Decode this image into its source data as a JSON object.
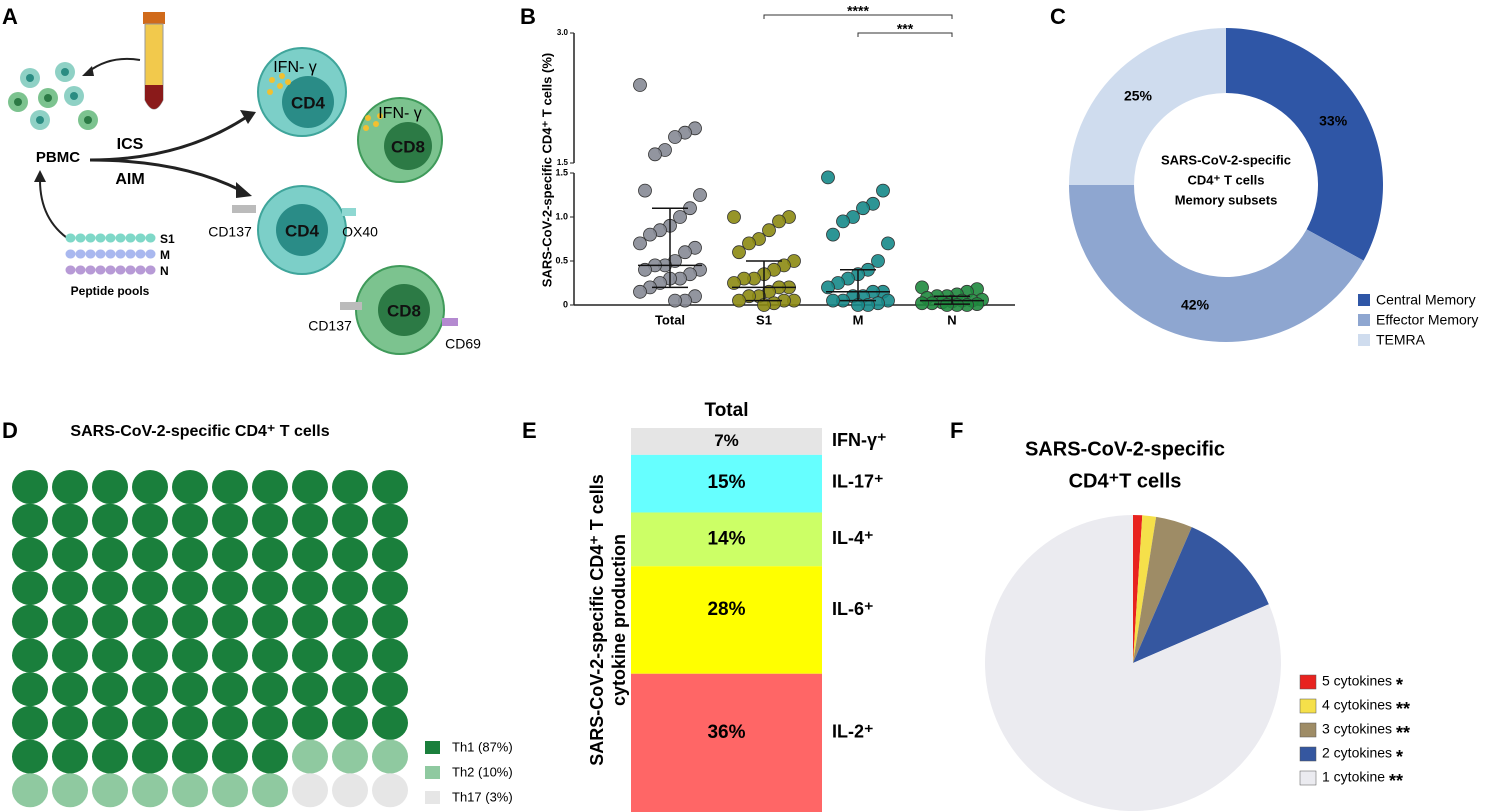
{
  "panel_labels": [
    "A",
    "B",
    "C",
    "D",
    "E",
    "F"
  ],
  "diagram": {
    "pbmc": "PBMC",
    "ics": "ICS",
    "aim": "AIM",
    "ifng": "IFN- γ",
    "cd4": "CD4",
    "cd8": "CD8",
    "cd137": "CD137",
    "ox40": "OX40",
    "cd69": "CD69",
    "peptides": [
      "S1",
      "M",
      "N"
    ],
    "peptide_pools": "Peptide pools"
  },
  "chart_data": [
    {
      "type": "dot",
      "ylabel": "SARS-CoV-2-specific CD4⁺ T cells (%)",
      "categories": [
        "Total",
        "S1",
        "M",
        "N"
      ],
      "colors": [
        "#868a95",
        "#8c8a12",
        "#168a8a",
        "#1f8a3e"
      ],
      "values": [
        [
          2.4,
          1.9,
          1.85,
          1.8,
          1.65,
          1.6,
          1.3,
          1.25,
          1.1,
          1.0,
          0.9,
          0.85,
          0.8,
          0.7,
          0.65,
          0.6,
          0.5,
          0.45,
          0.45,
          0.4,
          0.4,
          0.35,
          0.3,
          0.3,
          0.25,
          0.2,
          0.15,
          0.1,
          0.05,
          0.05
        ],
        [
          1.0,
          1.0,
          0.95,
          0.85,
          0.75,
          0.7,
          0.6,
          0.5,
          0.45,
          0.4,
          0.35,
          0.3,
          0.3,
          0.25,
          0.2,
          0.2,
          0.15,
          0.1,
          0.1,
          0.05,
          0.05,
          0.05,
          0.02,
          0
        ],
        [
          1.45,
          1.3,
          1.15,
          1.1,
          1.0,
          0.95,
          0.8,
          0.7,
          0.5,
          0.4,
          0.35,
          0.3,
          0.25,
          0.2,
          0.15,
          0.15,
          0.1,
          0.1,
          0.05,
          0.05,
          0.05,
          0.02,
          0,
          0
        ],
        [
          0.2,
          0.18,
          0.15,
          0.12,
          0.1,
          0.1,
          0.08,
          0.06,
          0.05,
          0.05,
          0.04,
          0.03,
          0.02,
          0.02,
          0.01,
          0,
          0,
          0
        ]
      ],
      "median": [
        0.45,
        0.2,
        0.15,
        0.05
      ],
      "q1": [
        0.2,
        0.05,
        0.05,
        0.01
      ],
      "q3": [
        1.1,
        0.5,
        0.4,
        0.1
      ],
      "ylim": [
        0,
        1.5
      ],
      "yticks": [
        0,
        0.5,
        {
          "value": 1,
          "label": "1.0"
        },
        1.5
      ],
      "ylim_upper": [
        1.5,
        3
      ],
      "yticks_upper": [
        1.5,
        {
          "value": 3,
          "label": "3.0"
        }
      ],
      "annotations": [
        "****",
        "***"
      ]
    },
    {
      "type": "donut",
      "title": [
        "SARS-CoV-2-specific",
        "CD4⁺ T cells",
        "Memory subsets"
      ],
      "categories": [
        "Central Memory",
        "Effector Memory",
        "TEMRA"
      ],
      "values": [
        33,
        42,
        25
      ],
      "value_labels": [
        "33%",
        "42%",
        "25%"
      ],
      "colors": [
        "#2f56a6",
        "#8ea6d0",
        "#cfdcee"
      ]
    },
    {
      "type": "waffle",
      "title": "SARS-CoV-2-specific CD4⁺ T cells",
      "categories": [
        "Th1 (87%)",
        "Th2 (10%)",
        "Th17 (3%)"
      ],
      "values": [
        87,
        10,
        3
      ],
      "colors": [
        "#1a7f3c",
        "#8fc9a0",
        "#e6e6e6"
      ]
    },
    {
      "type": "stacked_bar",
      "title": "Total",
      "ylabel": [
        "SARS-CoV-2-specific CD4⁺ T cells",
        "cytokine production"
      ],
      "categories": [
        "IFN-γ⁺",
        "IL-17⁺",
        "IL-4⁺",
        "IL-6⁺",
        "IL-2⁺"
      ],
      "values": [
        7,
        15,
        14,
        28,
        36
      ],
      "value_labels": [
        "7%",
        "15%",
        "14%",
        "28%",
        "36%"
      ],
      "colors": [
        "#e5e5e5",
        "#66ffff",
        "#ccff66",
        "#ffff00",
        "#ff6666"
      ]
    },
    {
      "type": "pie",
      "title": [
        "SARS-CoV-2-specific",
        "CD4⁺T cells"
      ],
      "categories": [
        "5 cytokines",
        "4 cytokines",
        "3 cytokines",
        "2 cytokines",
        "1 cytokine"
      ],
      "stars": [
        "*",
        "**",
        "**",
        "*",
        "**"
      ],
      "values": [
        1,
        1.5,
        4,
        12,
        81.5
      ],
      "colors": [
        "#e8231f",
        "#f5e04a",
        "#9e8c66",
        "#3557a0",
        "#ebebf0"
      ]
    }
  ]
}
